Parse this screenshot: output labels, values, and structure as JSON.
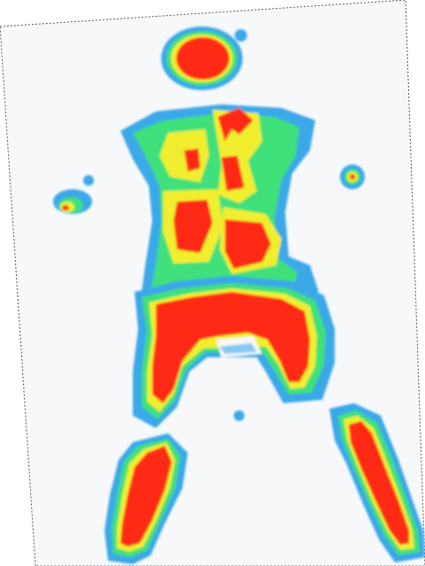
{
  "heatmap": {
    "colors": {
      "background": "#f7f8f9",
      "low": "#3aa8e8",
      "mid_low": "#3fe07a",
      "mid": "#f0ee2e",
      "high": "#ff2a14"
    }
  }
}
